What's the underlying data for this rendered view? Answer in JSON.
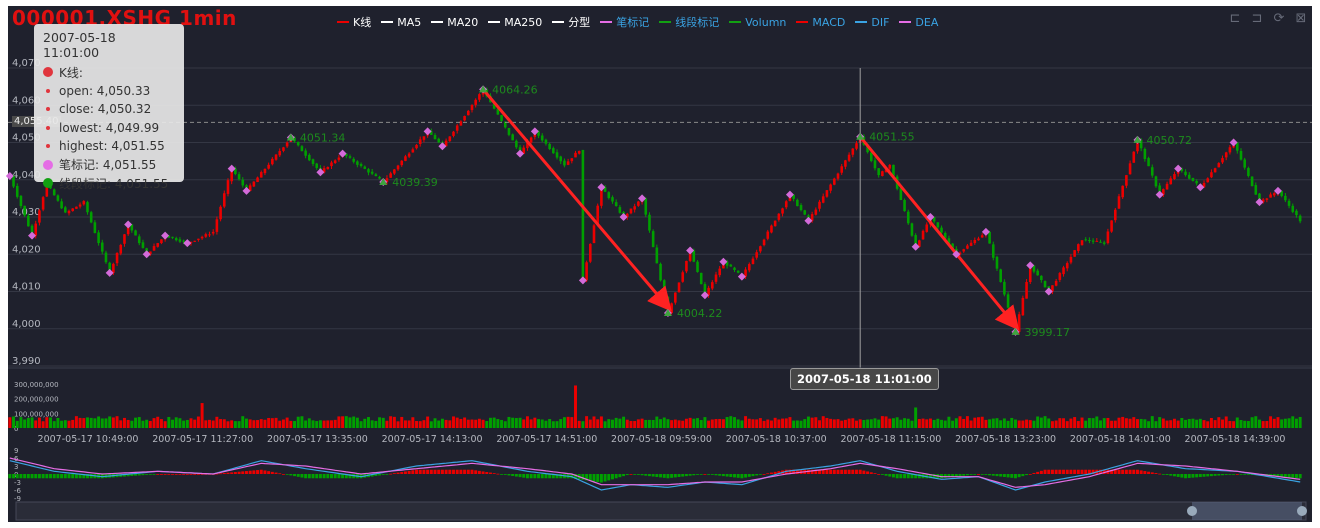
{
  "title": "000001.XSHG   1min",
  "colors": {
    "background": "#1f212d",
    "up": "#ec0000",
    "down": "#00a000",
    "bi": "#d36ad9",
    "xd": "#1d8a1d",
    "axis_text": "#b5b8c0",
    "grid": "#343744",
    "arrow": "#ff2222"
  },
  "legend": [
    {
      "label": "K线",
      "color": "#ec0000",
      "text_color": "#ffffff"
    },
    {
      "label": "MA5",
      "color": "#ffffff",
      "text_color": "#ffffff"
    },
    {
      "label": "MA20",
      "color": "#ffffff",
      "text_color": "#ffffff"
    },
    {
      "label": "MA250",
      "color": "#ffffff",
      "text_color": "#ffffff"
    },
    {
      "label": "分型",
      "color": "#ffffff",
      "text_color": "#ffffff"
    },
    {
      "label": "笔标记",
      "color": "#e56de5",
      "text_color": "#3aa3e3"
    },
    {
      "label": "线段标记",
      "color": "#12a012",
      "text_color": "#3aa3e3"
    },
    {
      "label": "Volumn",
      "color": "#12a012",
      "text_color": "#3aa3e3"
    },
    {
      "label": "MACD",
      "color": "#ec0000",
      "text_color": "#3aa3e3"
    },
    {
      "label": "DIF",
      "color": "#3aa3e3",
      "text_color": "#3aa3e3"
    },
    {
      "label": "DEA",
      "color": "#e56de5",
      "text_color": "#3aa3e3"
    }
  ],
  "toolbox": [
    {
      "name": "zoom-icon",
      "glyph": "⊏"
    },
    {
      "name": "zoom-back-icon",
      "glyph": "⊐"
    },
    {
      "name": "restore-icon",
      "glyph": "⟳"
    },
    {
      "name": "save-image-icon",
      "glyph": "⊠"
    }
  ],
  "tooltip": {
    "date": "2007-05-18 11:01:00",
    "series": "K线:",
    "open": "open: 4,050.33",
    "close": "close: 4,050.32",
    "lowest": "lowest: 4,049.99",
    "highest": "highest: 4,051.55",
    "bi": "笔标记: 4,051.55",
    "xd": "线段标记: 4,051.55"
  },
  "crosshair": {
    "x_label": "2007-05-18 11:01:00",
    "y_label": "4,055.40",
    "y_value": 4055.4,
    "x_index": 230
  },
  "chart_data": {
    "type": "candlestick",
    "ylim": [
      3990,
      4070
    ],
    "yticks": [
      "3,990",
      "4,000",
      "4,010",
      "4,020",
      "4,030",
      "4,040",
      "4,050",
      "4,060",
      "4,070"
    ],
    "xticks": [
      "2007-05-17 10:49:00",
      "2007-05-17 11:27:00",
      "2007-05-17 13:35:00",
      "2007-05-17 14:13:00",
      "2007-05-17 14:51:00",
      "2007-05-18 09:59:00",
      "2007-05-18 10:37:00",
      "2007-05-18 11:15:00",
      "2007-05-18 13:23:00",
      "2007-05-18 14:01:00",
      "2007-05-18 14:39:00"
    ],
    "n_bars": 350,
    "price_path": [
      [
        0,
        4041
      ],
      [
        6,
        4025
      ],
      [
        10,
        4039
      ],
      [
        15,
        4031
      ],
      [
        20,
        4034
      ],
      [
        27,
        4015
      ],
      [
        32,
        4028
      ],
      [
        37,
        4020
      ],
      [
        42,
        4025
      ],
      [
        48,
        4023
      ],
      [
        55,
        4026
      ],
      [
        60,
        4043
      ],
      [
        64,
        4037
      ],
      [
        76,
        4051.34
      ],
      [
        84,
        4042
      ],
      [
        90,
        4047
      ],
      [
        101,
        4039.39
      ],
      [
        113,
        4053
      ],
      [
        117,
        4049
      ],
      [
        128,
        4064.26
      ],
      [
        138,
        4047
      ],
      [
        142,
        4053
      ],
      [
        150,
        4044
      ],
      [
        154,
        4048
      ],
      [
        155,
        4013
      ],
      [
        160,
        4038
      ],
      [
        166,
        4030
      ],
      [
        171,
        4035
      ],
      [
        178,
        4004.22
      ],
      [
        184,
        4021
      ],
      [
        188,
        4009
      ],
      [
        193,
        4018
      ],
      [
        198,
        4014
      ],
      [
        211,
        4036
      ],
      [
        216,
        4029
      ],
      [
        230,
        4051.55
      ],
      [
        235,
        4041
      ],
      [
        238,
        4044
      ],
      [
        245,
        4022
      ],
      [
        249,
        4030
      ],
      [
        256,
        4020
      ],
      [
        264,
        4026
      ],
      [
        272,
        3999.17
      ],
      [
        276,
        4017
      ],
      [
        281,
        4010
      ],
      [
        290,
        4024
      ],
      [
        296,
        4023
      ],
      [
        305,
        4050.72
      ],
      [
        311,
        4036
      ],
      [
        316,
        4043
      ],
      [
        322,
        4038
      ],
      [
        331,
        4050
      ],
      [
        338,
        4034
      ],
      [
        343,
        4037
      ],
      [
        349,
        4029
      ]
    ],
    "bi_markers": [
      [
        0,
        4041
      ],
      [
        6,
        4025
      ],
      [
        10,
        4039
      ],
      [
        27,
        4015
      ],
      [
        32,
        4028
      ],
      [
        37,
        4020
      ],
      [
        42,
        4025
      ],
      [
        48,
        4023
      ],
      [
        60,
        4043
      ],
      [
        64,
        4037
      ],
      [
        76,
        4051.34
      ],
      [
        84,
        4042
      ],
      [
        90,
        4047
      ],
      [
        101,
        4039.39
      ],
      [
        113,
        4053
      ],
      [
        117,
        4049
      ],
      [
        128,
        4064.26
      ],
      [
        138,
        4047
      ],
      [
        142,
        4053
      ],
      [
        155,
        4013
      ],
      [
        160,
        4038
      ],
      [
        166,
        4030
      ],
      [
        171,
        4035
      ],
      [
        178,
        4004.22
      ],
      [
        184,
        4021
      ],
      [
        188,
        4009
      ],
      [
        193,
        4018
      ],
      [
        198,
        4014
      ],
      [
        211,
        4036
      ],
      [
        216,
        4029
      ],
      [
        230,
        4051.55
      ],
      [
        245,
        4022
      ],
      [
        249,
        4030
      ],
      [
        256,
        4020
      ],
      [
        264,
        4026
      ],
      [
        272,
        3999.17
      ],
      [
        276,
        4017
      ],
      [
        281,
        4010
      ],
      [
        305,
        4050.72
      ],
      [
        311,
        4036
      ],
      [
        316,
        4043
      ],
      [
        322,
        4038
      ],
      [
        331,
        4050
      ],
      [
        338,
        4034
      ],
      [
        343,
        4037
      ]
    ],
    "xd_markers": [
      {
        "i": 76,
        "v": 4051.34,
        "label": "4051.34"
      },
      {
        "i": 101,
        "v": 4039.39,
        "label": "4039.39"
      },
      {
        "i": 128,
        "v": 4064.26,
        "label": "4064.26"
      },
      {
        "i": 178,
        "v": 4004.22,
        "label": "4004.22"
      },
      {
        "i": 230,
        "v": 4051.55,
        "label": "4051.55"
      },
      {
        "i": 272,
        "v": 3999.17,
        "label": "3999.17"
      },
      {
        "i": 305,
        "v": 4050.72,
        "label": "4050.72"
      }
    ],
    "arrows": [
      {
        "from": [
          128,
          4064.26
        ],
        "to": [
          178,
          4004.22
        ]
      },
      {
        "from": [
          230,
          4051.55
        ],
        "to": [
          272,
          3999.17
        ]
      }
    ],
    "volume": {
      "ylim": [
        0,
        300000000
      ],
      "yticks": [
        "300,000,000",
        "200,000,000",
        "100,000,000",
        "0"
      ],
      "base": 65000000,
      "spikes": [
        [
          52,
          170000000
        ],
        [
          153,
          290000000
        ],
        [
          245,
          140000000
        ]
      ]
    },
    "macd": {
      "ylim": [
        -9,
        9
      ],
      "yticks": [
        "9",
        "6",
        "3",
        "0",
        "-3",
        "-6",
        "-9"
      ],
      "dif": [
        [
          0,
          5
        ],
        [
          12,
          1
        ],
        [
          25,
          -1
        ],
        [
          40,
          1
        ],
        [
          55,
          0
        ],
        [
          68,
          5
        ],
        [
          80,
          2
        ],
        [
          95,
          -1
        ],
        [
          110,
          3
        ],
        [
          125,
          5
        ],
        [
          140,
          1
        ],
        [
          152,
          -1
        ],
        [
          160,
          -6
        ],
        [
          168,
          -4
        ],
        [
          178,
          -5
        ],
        [
          188,
          -3
        ],
        [
          198,
          -4
        ],
        [
          210,
          1
        ],
        [
          222,
          3
        ],
        [
          230,
          5
        ],
        [
          240,
          1
        ],
        [
          252,
          -2
        ],
        [
          262,
          -1
        ],
        [
          272,
          -6
        ],
        [
          280,
          -3
        ],
        [
          292,
          0
        ],
        [
          305,
          5
        ],
        [
          318,
          2
        ],
        [
          332,
          1
        ],
        [
          349,
          -3
        ]
      ],
      "dea": [
        [
          0,
          6
        ],
        [
          12,
          2
        ],
        [
          25,
          0
        ],
        [
          40,
          1
        ],
        [
          55,
          0
        ],
        [
          68,
          4
        ],
        [
          80,
          3
        ],
        [
          95,
          0
        ],
        [
          110,
          2
        ],
        [
          125,
          4
        ],
        [
          140,
          2
        ],
        [
          152,
          0
        ],
        [
          160,
          -4
        ],
        [
          168,
          -4
        ],
        [
          178,
          -4
        ],
        [
          188,
          -3
        ],
        [
          198,
          -3
        ],
        [
          210,
          0
        ],
        [
          222,
          2
        ],
        [
          230,
          4
        ],
        [
          240,
          2
        ],
        [
          252,
          -1
        ],
        [
          262,
          -1
        ],
        [
          272,
          -5
        ],
        [
          280,
          -4
        ],
        [
          292,
          -1
        ],
        [
          305,
          4
        ],
        [
          318,
          3
        ],
        [
          332,
          1
        ],
        [
          349,
          -2
        ]
      ]
    }
  }
}
